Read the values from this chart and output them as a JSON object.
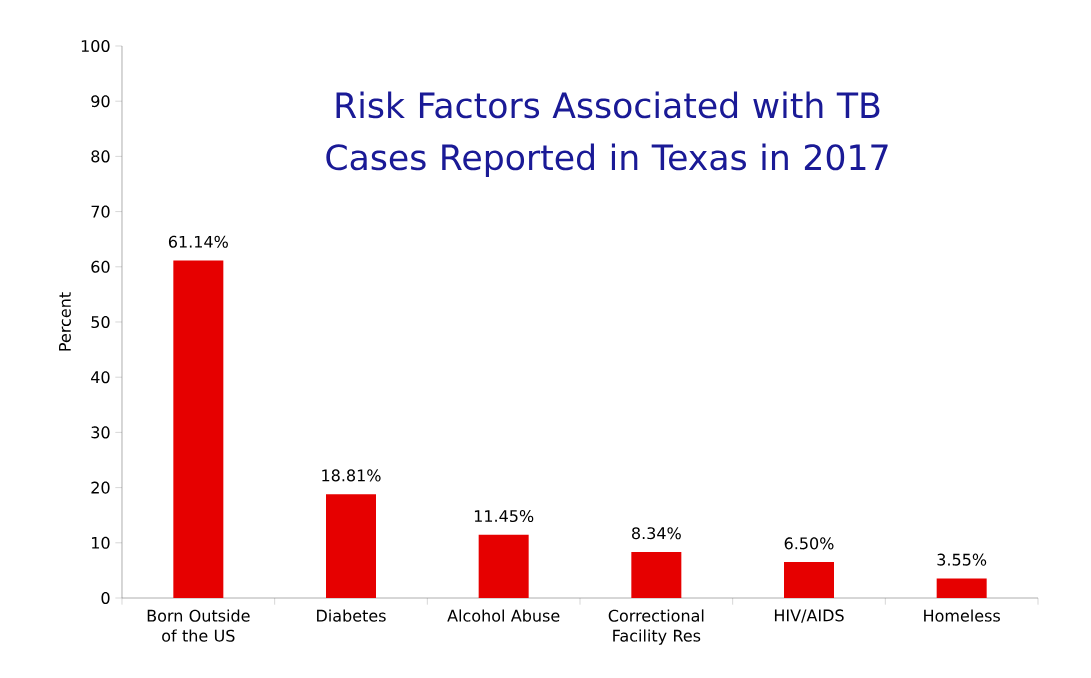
{
  "chart_data": {
    "type": "bar",
    "title": "Risk Factors Associated with TB Cases Reported in Texas in 2017",
    "ylabel": "Percent",
    "categories": [
      "Born Outside of the US",
      "Diabetes",
      "Alcohol Abuse",
      "Correctional Facility Res",
      "HIV/AIDS",
      "Homeless"
    ],
    "values": [
      61.14,
      18.81,
      11.45,
      8.34,
      6.5,
      3.55
    ],
    "value_labels": [
      "61.14%",
      "18.81%",
      "11.45%",
      "8.34%",
      "6.50%",
      "3.55%"
    ],
    "color": "#e60000",
    "ylim": [
      0,
      100
    ],
    "yticks": [
      0,
      10,
      20,
      30,
      40,
      50,
      60,
      70,
      80,
      90,
      100
    ]
  }
}
